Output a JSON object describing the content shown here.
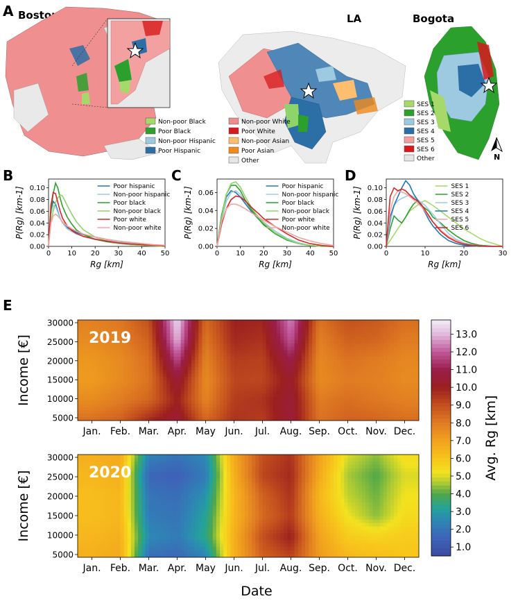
{
  "panels": {
    "A": "A",
    "B": "B",
    "C": "C",
    "D": "D",
    "E": "E"
  },
  "maps": [
    {
      "city": "Boston"
    },
    {
      "city": "LA"
    },
    {
      "city": "Bogota"
    }
  ],
  "compass": "N",
  "map_legend_race": [
    {
      "label": "Non-poor Black",
      "color": "#a6d96a"
    },
    {
      "label": "Poor Black",
      "color": "#2ca02c"
    },
    {
      "label": "Non-poor Hispanic",
      "color": "#9ecae1"
    },
    {
      "label": "Poor Hispanic",
      "color": "#2c6fa6"
    },
    {
      "label": "Non-poor White",
      "color": "#f08c8c"
    },
    {
      "label": "Poor White",
      "color": "#d7191c"
    },
    {
      "label": "Non-poor Asian",
      "color": "#fdbf6f"
    },
    {
      "label": "Poor Asian",
      "color": "#f08a1c"
    },
    {
      "label": "Other",
      "color": "#e5e5e5"
    }
  ],
  "map_legend_ses": [
    {
      "label": "SES 1",
      "color": "#a6d96a"
    },
    {
      "label": "SES 2",
      "color": "#2ca02c"
    },
    {
      "label": "SES 3",
      "color": "#9ecae1"
    },
    {
      "label": "SES 4",
      "color": "#2c6fa6"
    },
    {
      "label": "SES 5",
      "color": "#f4a0a0"
    },
    {
      "label": "SES 6",
      "color": "#d7191c"
    },
    {
      "label": "Other",
      "color": "#e5e5e5"
    }
  ],
  "chart_data": [
    {
      "panel": "B",
      "type": "line",
      "xlabel": "Rg [km]",
      "ylabel": "P(Rg) [km-1]",
      "xlim": [
        0,
        50
      ],
      "ylim": [
        0,
        0.115
      ],
      "xticks": [
        "0",
        "10",
        "20",
        "30",
        "40",
        "50"
      ],
      "yticks": [
        "0.00",
        "0.02",
        "0.04",
        "0.06",
        "0.08",
        "0.10"
      ],
      "legend_position": "top-right",
      "x": [
        0,
        1,
        2,
        3,
        4,
        5,
        6,
        8,
        10,
        12,
        15,
        20,
        25,
        30,
        35,
        40,
        45,
        50
      ],
      "series": [
        {
          "name": "Poor hispanic",
          "color": "#1f77b4",
          "values": [
            0,
            0.06,
            0.077,
            0.072,
            0.06,
            0.048,
            0.04,
            0.032,
            0.028,
            0.024,
            0.02,
            0.016,
            0.012,
            0.009,
            0.006,
            0.004,
            0.002,
            0.001
          ]
        },
        {
          "name": "Non-poor hispanic",
          "color": "#9ecae1",
          "values": [
            0,
            0.055,
            0.07,
            0.068,
            0.058,
            0.048,
            0.04,
            0.03,
            0.025,
            0.021,
            0.017,
            0.013,
            0.01,
            0.007,
            0.005,
            0.003,
            0.002,
            0.001
          ]
        },
        {
          "name": "Poor black",
          "color": "#2ca02c",
          "values": [
            0,
            0.06,
            0.09,
            0.108,
            0.1,
            0.082,
            0.068,
            0.05,
            0.038,
            0.028,
            0.02,
            0.012,
            0.008,
            0.005,
            0.003,
            0.002,
            0.001,
            0.0
          ]
        },
        {
          "name": "Non-poor black",
          "color": "#8fd46a",
          "values": [
            0,
            0.04,
            0.06,
            0.075,
            0.083,
            0.088,
            0.086,
            0.07,
            0.055,
            0.042,
            0.028,
            0.016,
            0.009,
            0.005,
            0.003,
            0.002,
            0.001,
            0.0
          ]
        },
        {
          "name": "Poor white",
          "color": "#d62728",
          "values": [
            0,
            0.07,
            0.092,
            0.09,
            0.075,
            0.06,
            0.048,
            0.035,
            0.027,
            0.022,
            0.017,
            0.012,
            0.009,
            0.006,
            0.004,
            0.003,
            0.002,
            0.001
          ]
        },
        {
          "name": "Non-poor white",
          "color": "#f5a3a3",
          "values": [
            0,
            0.04,
            0.052,
            0.055,
            0.052,
            0.047,
            0.042,
            0.035,
            0.03,
            0.026,
            0.021,
            0.016,
            0.012,
            0.009,
            0.007,
            0.005,
            0.003,
            0.002
          ]
        }
      ]
    },
    {
      "panel": "C",
      "type": "line",
      "xlabel": "Rg [km]",
      "ylabel": "P(Rg) [km-1]",
      "xlim": [
        0,
        50
      ],
      "ylim": [
        0,
        0.075
      ],
      "xticks": [
        "0",
        "10",
        "20",
        "30",
        "40",
        "50"
      ],
      "yticks": [
        "0.00",
        "0.02",
        "0.04",
        "0.06"
      ],
      "legend_position": "top-right",
      "x": [
        0,
        2,
        4,
        6,
        8,
        10,
        12,
        15,
        18,
        20,
        25,
        30,
        35,
        40,
        45,
        50
      ],
      "series": [
        {
          "name": "Poor hispanic",
          "color": "#1f77b4",
          "values": [
            0,
            0.035,
            0.055,
            0.062,
            0.06,
            0.055,
            0.048,
            0.038,
            0.03,
            0.025,
            0.015,
            0.008,
            0.003,
            0.001,
            0.0,
            0.0
          ]
        },
        {
          "name": "Non-poor hispanic",
          "color": "#9ecae1",
          "values": [
            0,
            0.03,
            0.05,
            0.06,
            0.062,
            0.058,
            0.05,
            0.04,
            0.032,
            0.027,
            0.017,
            0.009,
            0.004,
            0.001,
            0.0,
            0.0
          ]
        },
        {
          "name": "Poor black",
          "color": "#2ca02c",
          "values": [
            0,
            0.035,
            0.058,
            0.068,
            0.068,
            0.062,
            0.052,
            0.04,
            0.03,
            0.024,
            0.014,
            0.007,
            0.003,
            0.001,
            0.0,
            0.0
          ]
        },
        {
          "name": "Non-poor black",
          "color": "#8fd46a",
          "values": [
            0,
            0.032,
            0.058,
            0.07,
            0.072,
            0.066,
            0.056,
            0.042,
            0.032,
            0.026,
            0.015,
            0.008,
            0.003,
            0.001,
            0.0,
            0.0
          ]
        },
        {
          "name": "Poor white",
          "color": "#d62728",
          "values": [
            0,
            0.025,
            0.042,
            0.052,
            0.056,
            0.055,
            0.051,
            0.043,
            0.036,
            0.031,
            0.022,
            0.014,
            0.007,
            0.003,
            0.001,
            0.0
          ]
        },
        {
          "name": "Non-poor white",
          "color": "#f5a3a3",
          "values": [
            0,
            0.028,
            0.042,
            0.047,
            0.047,
            0.045,
            0.042,
            0.037,
            0.032,
            0.029,
            0.022,
            0.016,
            0.01,
            0.006,
            0.003,
            0.001
          ]
        }
      ]
    },
    {
      "panel": "D",
      "type": "line",
      "xlabel": "Rg [km]",
      "ylabel": "P(Rg) [km-1]",
      "xlim": [
        0,
        30
      ],
      "ylim": [
        0,
        0.115
      ],
      "xticks": [
        "0",
        "10",
        "20",
        "30"
      ],
      "yticks": [
        "0.00",
        "0.02",
        "0.04",
        "0.06",
        "0.08",
        "0.10"
      ],
      "legend_position": "top-right",
      "x": [
        0,
        1,
        2,
        3,
        4,
        5,
        6,
        7,
        8,
        9,
        10,
        11,
        12,
        14,
        16,
        18,
        20,
        22,
        24,
        26,
        28,
        30
      ],
      "series": [
        {
          "name": "SES 1",
          "color": "#a6d96a",
          "values": [
            0,
            0.01,
            0.02,
            0.03,
            0.04,
            0.05,
            0.06,
            0.065,
            0.07,
            0.075,
            0.078,
            0.074,
            0.07,
            0.06,
            0.05,
            0.04,
            0.03,
            0.022,
            0.014,
            0.008,
            0.004,
            0.0
          ]
        },
        {
          "name": "SES 2",
          "color": "#2ca02c",
          "values": [
            0,
            0.03,
            0.052,
            0.045,
            0.04,
            0.05,
            0.062,
            0.072,
            0.078,
            0.07,
            0.065,
            0.06,
            0.05,
            0.04,
            0.028,
            0.018,
            0.01,
            0.005,
            0.002,
            0.001,
            0.0,
            0.0
          ]
        },
        {
          "name": "SES 3",
          "color": "#9ecae1",
          "values": [
            0,
            0.04,
            0.07,
            0.078,
            0.082,
            0.085,
            0.088,
            0.085,
            0.08,
            0.075,
            0.07,
            0.062,
            0.055,
            0.038,
            0.022,
            0.012,
            0.006,
            0.003,
            0.001,
            0.0,
            0.0,
            0.0
          ]
        },
        {
          "name": "SES 4",
          "color": "#1f77b4",
          "values": [
            0,
            0.05,
            0.07,
            0.085,
            0.1,
            0.112,
            0.105,
            0.09,
            0.08,
            0.07,
            0.058,
            0.045,
            0.035,
            0.02,
            0.01,
            0.005,
            0.002,
            0.001,
            0.0,
            0.0,
            0.0,
            0.0
          ]
        },
        {
          "name": "SES 5",
          "color": "#f5a3a3",
          "values": [
            0,
            0.06,
            0.085,
            0.095,
            0.093,
            0.09,
            0.085,
            0.08,
            0.074,
            0.068,
            0.06,
            0.05,
            0.042,
            0.028,
            0.017,
            0.01,
            0.005,
            0.002,
            0.001,
            0.0,
            0.0,
            0.0
          ]
        },
        {
          "name": "SES 6",
          "color": "#d62728",
          "values": [
            0,
            0.085,
            0.1,
            0.095,
            0.098,
            0.095,
            0.088,
            0.082,
            0.078,
            0.072,
            0.062,
            0.052,
            0.042,
            0.026,
            0.015,
            0.008,
            0.004,
            0.002,
            0.001,
            0.0,
            0.0,
            0.0
          ]
        }
      ]
    },
    {
      "panel": "E",
      "type": "heatmap",
      "xlabel": "Date",
      "ylabel": "Income [€]",
      "colorbar_label": "Avg. Rg [km]",
      "colorbar_ticks": [
        "1.0",
        "2.0",
        "3.0",
        "4.0",
        "5.0",
        "6.0",
        "7.0",
        "8.0",
        "9.0",
        "10.0",
        "11.0",
        "12.0",
        "13.0"
      ],
      "colorbar_range": [
        0.5,
        13.8
      ],
      "months": [
        "Jan.",
        "Feb.",
        "Mar.",
        "Apr.",
        "May",
        "Jun.",
        "Jul.",
        "Aug.",
        "Sep.",
        "Oct.",
        "Nov.",
        "Dec."
      ],
      "yticks": [
        "5000",
        "10000",
        "15000",
        "20000",
        "25000",
        "30000"
      ],
      "income_rows": [
        5000,
        10000,
        15000,
        20000,
        25000,
        30000
      ],
      "heatmaps": [
        {
          "year": "2019",
          "values": [
            [
              8.3,
              8.6,
              9.8,
              10.6,
              8.5,
              9.6,
              9.4,
              10.6,
              8.2,
              8.6,
              8.5,
              8.3
            ],
            [
              7.6,
              8.0,
              8.5,
              10.0,
              7.8,
              9.4,
              9.6,
              10.6,
              8.0,
              8.3,
              8.1,
              7.9
            ],
            [
              7.2,
              7.6,
              8.2,
              10.6,
              7.6,
              9.2,
              9.2,
              10.3,
              7.6,
              8.0,
              7.9,
              7.6
            ],
            [
              7.3,
              7.6,
              8.3,
              11.8,
              7.8,
              9.4,
              9.3,
              11.0,
              7.7,
              8.2,
              8.0,
              7.7
            ],
            [
              7.6,
              7.9,
              8.6,
              13.0,
              8.1,
              9.8,
              9.6,
              12.0,
              7.9,
              8.6,
              8.5,
              8.0
            ],
            [
              7.9,
              8.1,
              9.0,
              13.5,
              8.4,
              10.0,
              9.9,
              12.5,
              8.2,
              9.0,
              8.8,
              8.3
            ]
          ]
        },
        {
          "year": "2020",
          "values": [
            [
              6.6,
              6.8,
              1.8,
              1.6,
              2.4,
              6.6,
              8.6,
              9.2,
              7.2,
              6.4,
              6.2,
              6.0
            ],
            [
              6.4,
              6.6,
              2.6,
              2.2,
              3.4,
              6.6,
              9.0,
              10.0,
              7.0,
              5.8,
              5.6,
              5.8
            ],
            [
              6.2,
              6.4,
              2.2,
              2.0,
              3.2,
              6.4,
              8.4,
              9.4,
              6.6,
              5.2,
              4.4,
              5.4
            ],
            [
              6.2,
              6.4,
              2.0,
              1.8,
              2.8,
              6.4,
              8.6,
              9.6,
              6.4,
              4.8,
              4.2,
              5.2
            ],
            [
              6.4,
              6.6,
              1.6,
              1.4,
              2.2,
              6.6,
              9.2,
              9.8,
              6.8,
              4.6,
              4.0,
              5.0
            ],
            [
              6.6,
              6.8,
              2.4,
              2.0,
              2.6,
              6.8,
              9.0,
              9.6,
              7.0,
              5.0,
              4.4,
              5.4
            ]
          ]
        }
      ]
    }
  ]
}
